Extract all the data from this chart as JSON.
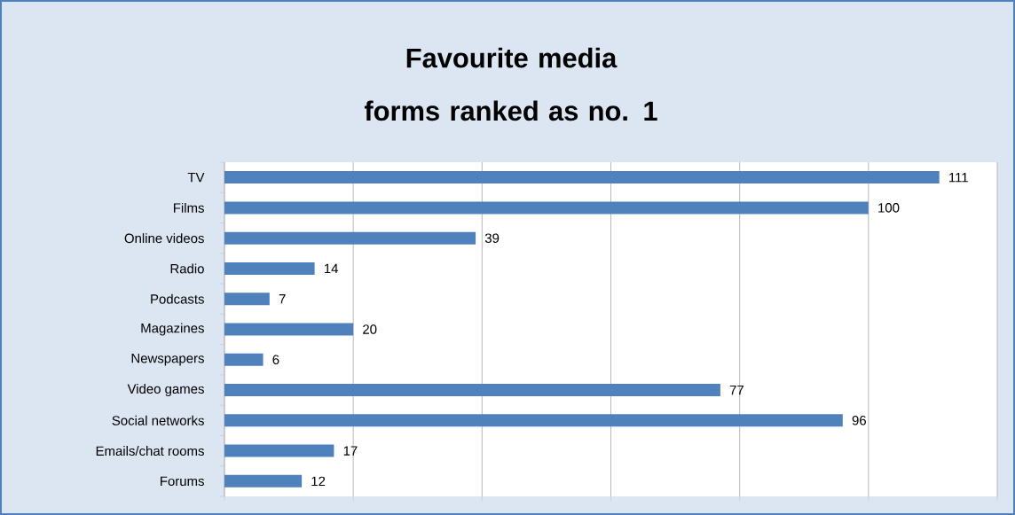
{
  "chart_data": {
    "type": "bar",
    "orientation": "horizontal",
    "title": "Favourite media forms ranked as no. 1",
    "categories": [
      "TV",
      "Films",
      "Online videos",
      "Radio",
      "Podcasts",
      "Magazines",
      "Newspapers",
      "Video games",
      "Social networks",
      "Emails/chat rooms",
      "Forums"
    ],
    "values": [
      111,
      100,
      39,
      14,
      7,
      20,
      6,
      77,
      96,
      17,
      12
    ],
    "color": "#4f81bd",
    "data_labels": true,
    "grid": "x",
    "tick_labels": "y",
    "xlim": [
      0,
      120
    ],
    "xticks": [
      {
        "value": 0,
        "label": null
      },
      {
        "value": 20,
        "label": null
      },
      {
        "value": 40,
        "label": null
      },
      {
        "value": 60,
        "label": null
      },
      {
        "value": 80,
        "label": null
      },
      {
        "value": 100,
        "label": null
      },
      {
        "value": 120,
        "label": null
      }
    ]
  }
}
